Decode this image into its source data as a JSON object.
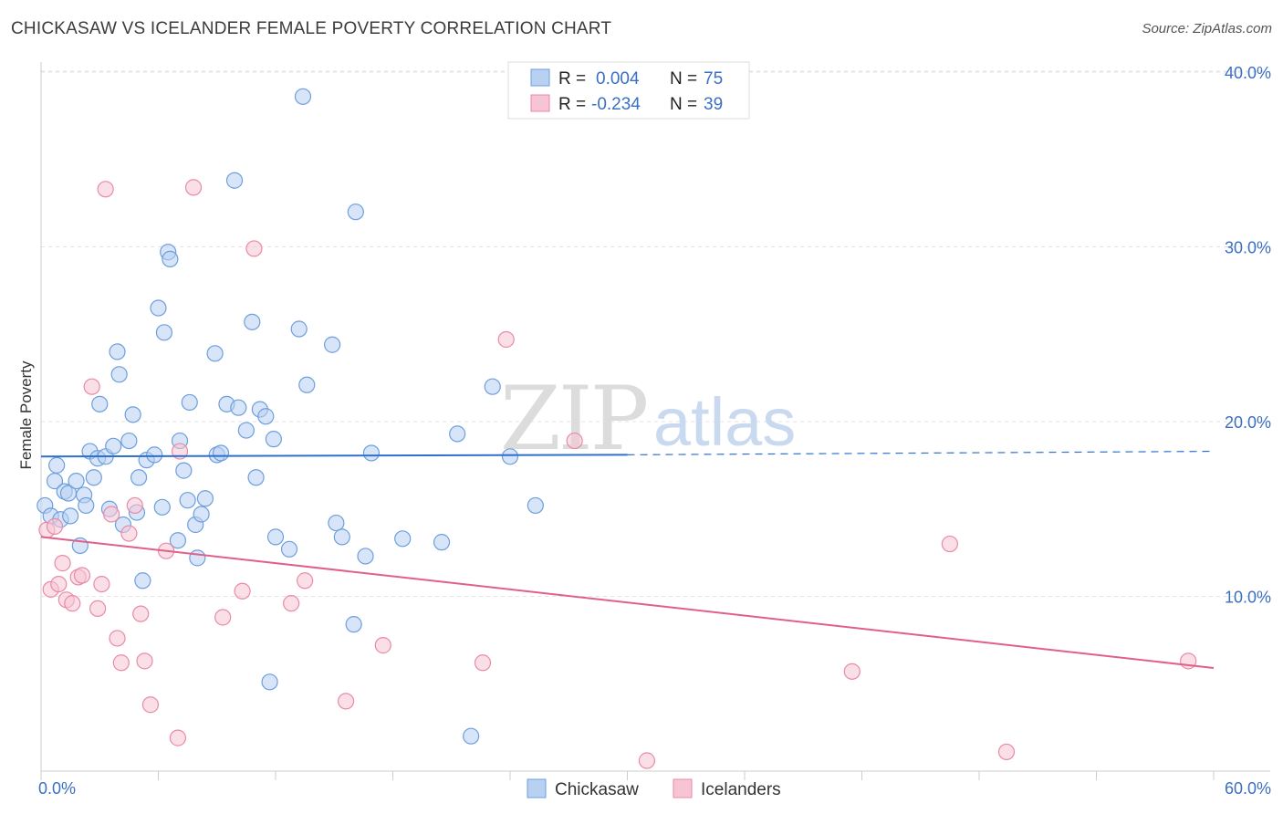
{
  "header": {
    "title": "CHICKASAW VS ICELANDER FEMALE POVERTY CORRELATION CHART",
    "source": "Source: ZipAtlas.com"
  },
  "watermark": {
    "part1": "ZIP",
    "part2": "atlas"
  },
  "legend": {
    "rows": [
      {
        "r_label": "R =",
        "r_value": "0.004",
        "n_label": "N =",
        "n_value": "75"
      },
      {
        "r_label": "R =",
        "r_value": "-0.234",
        "n_label": "N =",
        "n_value": "39"
      }
    ]
  },
  "bottom_legend": [
    "Chickasaw",
    "Icelanders"
  ],
  "chart_data": {
    "type": "scatter",
    "ylabel": "Female Poverty",
    "xlabel": "",
    "xlim": [
      0,
      60
    ],
    "ylim": [
      0,
      40
    ],
    "x_tick_labels": [
      {
        "value": 0,
        "label": "0.0%"
      },
      {
        "value": 60,
        "label": "60.0%"
      }
    ],
    "y_tick_labels": [
      {
        "value": 10,
        "label": "10.0%"
      },
      {
        "value": 20,
        "label": "20.0%"
      },
      {
        "value": 30,
        "label": "30.0%"
      },
      {
        "value": 40,
        "label": "40.0%"
      }
    ],
    "grid": true,
    "colors": {
      "chickasaw_fill": "#b8d0f2",
      "chickasaw_stroke": "#6d9fdc",
      "chickasaw_line": "#2f6fcf",
      "icelanders_fill": "#f7c4d3",
      "icelanders_stroke": "#e98aa8",
      "icelanders_line": "#e0608c"
    },
    "series": [
      {
        "name": "Chickasaw",
        "trend": {
          "x0": 0,
          "y0": 18.0,
          "x1": 30,
          "y1": 18.1,
          "dashed_to_x": 60,
          "dashed_to_y": 18.3
        },
        "points": [
          [
            0.2,
            15.2
          ],
          [
            0.5,
            14.6
          ],
          [
            0.7,
            16.6
          ],
          [
            0.8,
            17.5
          ],
          [
            1.0,
            14.4
          ],
          [
            1.2,
            16.0
          ],
          [
            1.4,
            15.9
          ],
          [
            1.5,
            14.6
          ],
          [
            1.8,
            16.6
          ],
          [
            2.0,
            12.9
          ],
          [
            2.2,
            15.8
          ],
          [
            2.3,
            15.2
          ],
          [
            2.5,
            18.3
          ],
          [
            2.7,
            16.8
          ],
          [
            2.9,
            17.9
          ],
          [
            3.0,
            21.0
          ],
          [
            3.3,
            18.0
          ],
          [
            3.5,
            15.0
          ],
          [
            3.7,
            18.6
          ],
          [
            3.9,
            24.0
          ],
          [
            4.0,
            22.7
          ],
          [
            4.2,
            14.1
          ],
          [
            4.5,
            18.9
          ],
          [
            4.7,
            20.4
          ],
          [
            4.9,
            14.8
          ],
          [
            5.0,
            16.8
          ],
          [
            5.2,
            10.9
          ],
          [
            5.4,
            17.8
          ],
          [
            5.8,
            18.1
          ],
          [
            6.0,
            26.5
          ],
          [
            6.2,
            15.1
          ],
          [
            6.3,
            25.1
          ],
          [
            6.5,
            29.7
          ],
          [
            6.6,
            29.3
          ],
          [
            7.0,
            13.2
          ],
          [
            7.1,
            18.9
          ],
          [
            7.3,
            17.2
          ],
          [
            7.5,
            15.5
          ],
          [
            7.6,
            21.1
          ],
          [
            7.9,
            14.1
          ],
          [
            8.0,
            12.2
          ],
          [
            8.2,
            14.7
          ],
          [
            8.4,
            15.6
          ],
          [
            8.9,
            23.9
          ],
          [
            9.0,
            18.1
          ],
          [
            9.2,
            18.2
          ],
          [
            9.5,
            21.0
          ],
          [
            9.9,
            33.8
          ],
          [
            10.1,
            20.8
          ],
          [
            10.5,
            19.5
          ],
          [
            10.8,
            25.7
          ],
          [
            11.0,
            16.8
          ],
          [
            11.2,
            20.7
          ],
          [
            11.5,
            20.3
          ],
          [
            11.7,
            5.1
          ],
          [
            11.9,
            19.0
          ],
          [
            12.0,
            13.4
          ],
          [
            12.7,
            12.7
          ],
          [
            13.2,
            25.3
          ],
          [
            13.4,
            38.6
          ],
          [
            13.6,
            22.1
          ],
          [
            14.9,
            24.4
          ],
          [
            15.1,
            14.2
          ],
          [
            15.4,
            13.4
          ],
          [
            16.0,
            8.4
          ],
          [
            16.1,
            32.0
          ],
          [
            16.6,
            12.3
          ],
          [
            16.9,
            18.2
          ],
          [
            18.5,
            13.3
          ],
          [
            20.5,
            13.1
          ],
          [
            21.3,
            19.3
          ],
          [
            22.0,
            2.0
          ],
          [
            23.1,
            22.0
          ],
          [
            25.3,
            15.2
          ],
          [
            24.0,
            18.0
          ]
        ]
      },
      {
        "name": "Icelanders",
        "trend": {
          "x0": 0,
          "y0": 13.4,
          "x1": 60,
          "y1": 5.9
        },
        "points": [
          [
            0.3,
            13.8
          ],
          [
            0.5,
            10.4
          ],
          [
            0.7,
            14.0
          ],
          [
            0.9,
            10.7
          ],
          [
            1.1,
            11.9
          ],
          [
            1.3,
            9.8
          ],
          [
            1.6,
            9.6
          ],
          [
            1.9,
            11.1
          ],
          [
            2.1,
            11.2
          ],
          [
            2.6,
            22.0
          ],
          [
            2.9,
            9.3
          ],
          [
            3.1,
            10.7
          ],
          [
            3.3,
            33.3
          ],
          [
            3.6,
            14.7
          ],
          [
            3.9,
            7.6
          ],
          [
            4.1,
            6.2
          ],
          [
            4.5,
            13.6
          ],
          [
            4.8,
            15.2
          ],
          [
            5.1,
            9.0
          ],
          [
            5.3,
            6.3
          ],
          [
            5.6,
            3.8
          ],
          [
            6.4,
            12.6
          ],
          [
            7.0,
            1.9
          ],
          [
            7.1,
            18.3
          ],
          [
            7.8,
            33.4
          ],
          [
            9.3,
            8.8
          ],
          [
            10.3,
            10.3
          ],
          [
            10.9,
            29.9
          ],
          [
            12.8,
            9.6
          ],
          [
            13.5,
            10.9
          ],
          [
            15.6,
            4.0
          ],
          [
            17.5,
            7.2
          ],
          [
            22.6,
            6.2
          ],
          [
            23.8,
            24.7
          ],
          [
            27.3,
            18.9
          ],
          [
            31.0,
            0.6
          ],
          [
            41.5,
            5.7
          ],
          [
            46.5,
            13.0
          ],
          [
            49.4,
            1.1
          ],
          [
            58.7,
            6.3
          ]
        ]
      }
    ]
  }
}
